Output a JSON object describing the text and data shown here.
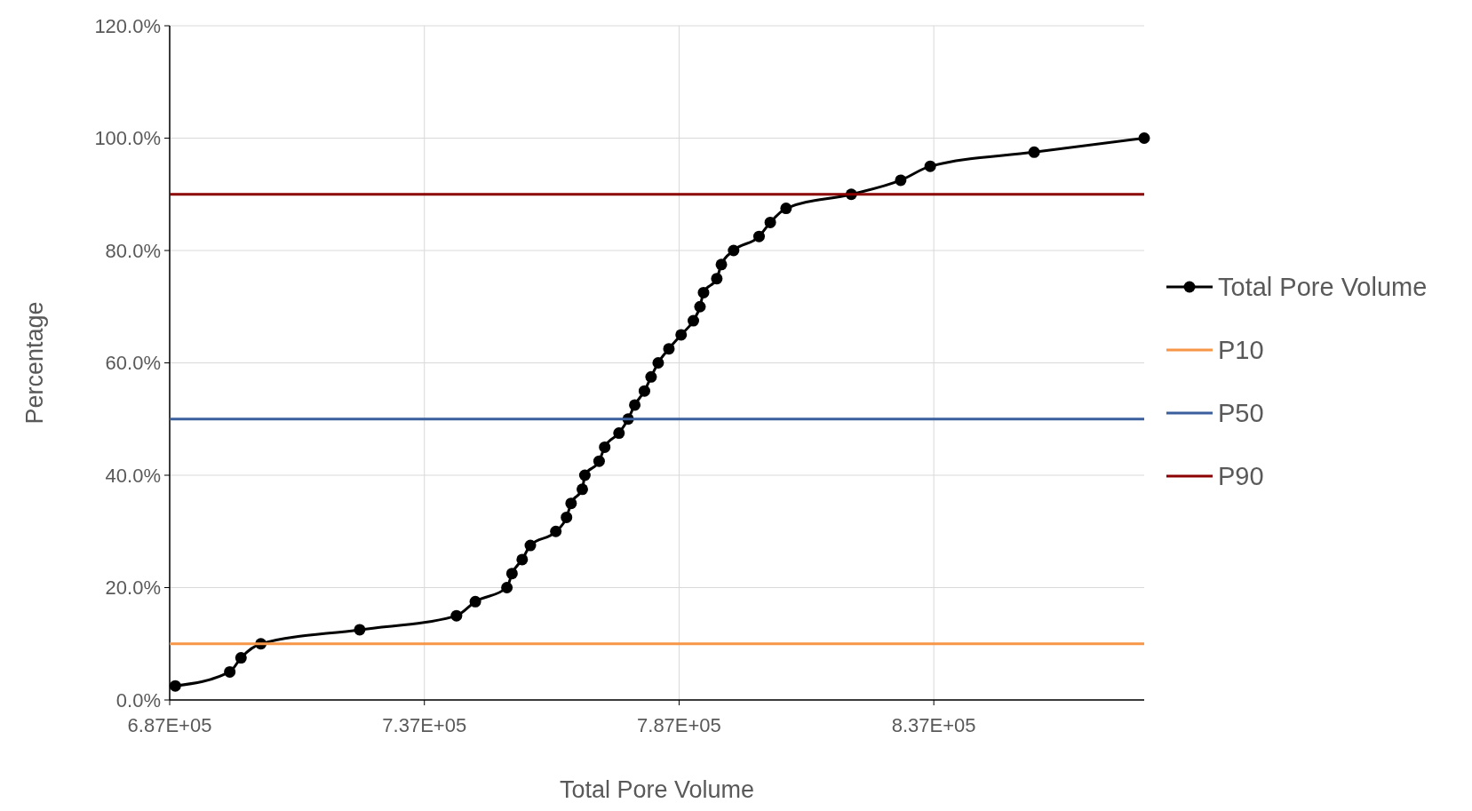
{
  "chart_data": {
    "type": "line",
    "xlabel": "Total Pore Volume",
    "ylabel": "Percentage",
    "xlim": [
      687000,
      878300
    ],
    "ylim": [
      0,
      120
    ],
    "xticks": [
      {
        "value": 687000,
        "label": "6.87E+05"
      },
      {
        "value": 737000,
        "label": "7.37E+05"
      },
      {
        "value": 787000,
        "label": "7.87E+05"
      },
      {
        "value": 837000,
        "label": "8.37E+05"
      }
    ],
    "yticks": [
      {
        "value": 0,
        "label": "0.0%"
      },
      {
        "value": 20,
        "label": "20.0%"
      },
      {
        "value": 40,
        "label": "40.0%"
      },
      {
        "value": 60,
        "label": "60.0%"
      },
      {
        "value": 80,
        "label": "80.0%"
      },
      {
        "value": 100,
        "label": "100.0%"
      },
      {
        "value": 120,
        "label": "120.0%"
      }
    ],
    "grid": true,
    "legend": "right",
    "series": [
      {
        "name": "Total Pore Volume",
        "color": "#000000",
        "marker": "circle",
        "x": [
          688100,
          698800,
          701000,
          704900,
          724300,
          743300,
          747000,
          753200,
          754200,
          756200,
          757800,
          762800,
          764900,
          765800,
          768000,
          768500,
          771300,
          772400,
          775200,
          777000,
          778300,
          780200,
          781500,
          782900,
          785000,
          787400,
          789800,
          791100,
          791800,
          794400,
          795300,
          797700,
          802700,
          804900,
          808000,
          820800,
          830500,
          836300,
          856700,
          878300
        ],
        "values": [
          2.5,
          5,
          7.5,
          10,
          12.5,
          15,
          17.5,
          20,
          22.5,
          25,
          27.5,
          30,
          32.5,
          35,
          37.5,
          40,
          42.5,
          45,
          47.5,
          50,
          52.5,
          55,
          57.5,
          60,
          62.5,
          65,
          67.5,
          70,
          72.5,
          75,
          77.5,
          80,
          82.5,
          85,
          87.5,
          90,
          92.5,
          95,
          97.5,
          100
        ]
      },
      {
        "name": "P10",
        "color": "#f79646",
        "marker": "none",
        "x": [
          687000,
          878300
        ],
        "values": [
          10,
          10
        ]
      },
      {
        "name": "P50",
        "color": "#3a5f9c",
        "marker": "none",
        "x": [
          687000,
          878300
        ],
        "values": [
          50,
          50
        ]
      },
      {
        "name": "P90",
        "color": "#8b0000",
        "marker": "none",
        "x": [
          687000,
          878300
        ],
        "values": [
          90,
          90
        ]
      }
    ]
  }
}
